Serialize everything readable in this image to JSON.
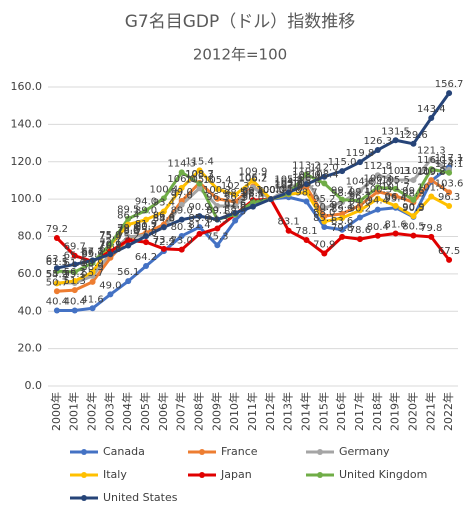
{
  "chart_data": {
    "type": "line",
    "title": "G7名目GDP（ドル）指数推移",
    "subtitle": "2012年=100",
    "categories": [
      "2000年",
      "2001年",
      "2002年",
      "2003年",
      "2004年",
      "2005年",
      "2006年",
      "2007年",
      "2008年",
      "2009年",
      "2010年",
      "2011年",
      "2012年",
      "2013年",
      "2014年",
      "2015年",
      "2016年",
      "2017年",
      "2018年",
      "2019年",
      "2020年",
      "2021年",
      "2022年"
    ],
    "ylim": [
      0,
      160
    ],
    "yticks": [
      {
        "value": 0,
        "label": "0.0"
      },
      {
        "value": 20,
        "label": "20.0"
      },
      {
        "value": 40,
        "label": "40.0"
      },
      {
        "value": 60,
        "label": "60.0"
      },
      {
        "value": 80,
        "label": "80.0"
      },
      {
        "value": 100,
        "label": "100.0"
      },
      {
        "value": 120,
        "label": "120.0"
      },
      {
        "value": 140,
        "label": "140.0"
      },
      {
        "value": 160,
        "label": "160.0"
      }
    ],
    "grid": true,
    "legend": "bottom",
    "series": [
      {
        "name": "Canada",
        "color": "#4472c4",
        "values": [
          40.4,
          40.4,
          41.6,
          49.0,
          56.1,
          64.2,
          72.2,
          80.3,
          85.0,
          75.3,
          88.5,
          98.1,
          100,
          101.0,
          98.7,
          85.1,
          83.6,
          90.2,
          94.4,
          95.4,
          90.5,
          109.8,
          117.1
        ],
        "value_labels": [
          "40.4",
          "40.4",
          "41.6",
          "49.0",
          "56.1",
          "64.2",
          "72.2",
          "80.3",
          "85.0",
          "75.3",
          "88.5",
          "98.1",
          "100.0",
          "101.0",
          "98.7",
          "85.1",
          "83.6",
          "90.2",
          "94.4",
          "95.4",
          "90.5",
          "109.8",
          "117.1"
        ]
      },
      {
        "name": "France",
        "color": "#ed7d31",
        "values": [
          50.7,
          51.3,
          55.7,
          68.6,
          78.8,
          81.9,
          86.4,
          99.0,
          108.7,
          100.2,
          98.5,
          106.7,
          100,
          104.7,
          106.4,
          90.9,
          92.1,
          96.7,
          104.0,
          101.7,
          98.3,
          110.2,
          103.6
        ],
        "value_labels": [
          "50.7",
          "51.3",
          "55.7",
          "68.6",
          "78.8",
          "81.9",
          "86.4",
          "99.0",
          "108.7",
          "100.2",
          "98.5",
          "106.7",
          "100.0",
          "104.7",
          "106.4",
          "90.9",
          "92.1",
          "96.7",
          "104.0",
          "101.7",
          "98.3",
          "110.2",
          "103.6"
        ]
      },
      {
        "name": "Germany",
        "color": "#a5a5a5",
        "values": [
          55.2,
          55.1,
          58.9,
          70.9,
          79.8,
          80.7,
          84.8,
          97.0,
          105.8,
          96.3,
          96.3,
          106.2,
          100,
          105.8,
          110.1,
          95.2,
          98.4,
          104.6,
          112.8,
          110.3,
          110.2,
          121.3,
          115.7
        ],
        "value_labels": [
          "55.2",
          "55.1",
          "58.9",
          "70.9",
          "79.8",
          "80.7",
          "84.8",
          "97.0",
          "105.8",
          "96.3",
          "96.3",
          "106.2",
          "100.0",
          "105.8",
          "110.1",
          "95.2",
          "98.4",
          "104.6",
          "112.8",
          "110.3",
          "110.2",
          "121.3",
          "115.7"
        ]
      },
      {
        "name": "Italy",
        "color": "#ffc000",
        "values": [
          54.9,
          56.2,
          60.9,
          75.4,
          86.4,
          89.0,
          93.4,
          106.0,
          115.4,
          105.4,
          102.3,
          109.9,
          100,
          102.6,
          103.6,
          88.0,
          89.9,
          94.0,
          100.3,
          96.4,
          90.9,
          101.4,
          96.3
        ],
        "value_labels": [
          "54.9",
          "56.2",
          "60.9",
          "75.4",
          "86.4",
          "89.0",
          "93.4",
          "106.0",
          "115.4",
          "105.4",
          "102.3",
          "109.9",
          "100.0",
          "102.6",
          "103.6",
          "88.0",
          "89.9",
          "94.0",
          "100.3",
          "96.4",
          "90.9",
          "101.4",
          "96.3"
        ]
      },
      {
        "name": "Japan",
        "color": "#e00000",
        "values": [
          79.2,
          69.7,
          66.7,
          72.1,
          78.0,
          77.0,
          73.4,
          73.0,
          81.4,
          84.3,
          91.8,
          99.4,
          100,
          83.1,
          78.1,
          70.9,
          79.8,
          78.6,
          80.4,
          81.6,
          80.5,
          79.8,
          67.5
        ],
        "value_labels": [
          "79.2",
          "69.7",
          "66.7",
          "72.1",
          "78.0",
          "77.0",
          "73.4",
          "73.0",
          "81.4",
          "84.3",
          "91.8",
          "99.4",
          "100.0",
          "83.1",
          "78.1",
          "70.9",
          "79.8",
          "78.6",
          "80.4",
          "81.6",
          "80.5",
          "79.8",
          "67.5"
        ]
      },
      {
        "name": "United Kingdom",
        "color": "#70ad47",
        "values": [
          61.5,
          61.0,
          65.9,
          75.9,
          89.5,
          94.0,
          100.4,
          114.3,
          108.3,
          89.1,
          91.8,
          98.4,
          100,
          102.9,
          113.2,
          108.4,
          99.7,
          99.1,
          106.3,
          105.5,
          99.6,
          116.0,
          114.1
        ],
        "value_labels": [
          "61.5",
          "61.0",
          "65.9",
          "75.9",
          "89.5",
          "94.0",
          "100.4",
          "114.3",
          "108.3",
          "89.1",
          "91.8",
          "98.4",
          "100.0",
          "102.9",
          "113.2",
          "108.4",
          "99.7",
          "99.1",
          "106.3",
          "105.5",
          "99.6",
          "116.0",
          "114.1"
        ]
      },
      {
        "name": "United States",
        "color": "#264478",
        "values": [
          63.1,
          65.1,
          67.2,
          70.5,
          75.2,
          80.2,
          85.0,
          89.0,
          90.9,
          89.1,
          92.6,
          96.0,
          100,
          103.6,
          108.0,
          112.0,
          115.0,
          119.8,
          126.3,
          131.5,
          129.6,
          143.4,
          156.7
        ],
        "value_labels": [
          "63.1",
          "65.1",
          "67.2",
          "70.5",
          "75.2",
          "80.2",
          "85.0",
          "89.0",
          "90.9",
          "89.1",
          "92.6",
          "96.0",
          "100.0",
          "103.6",
          "108.0",
          "112.0",
          "115.0",
          "119.8",
          "126.3",
          "131.5",
          "129.6",
          "143.4",
          "156.7"
        ]
      }
    ]
  }
}
